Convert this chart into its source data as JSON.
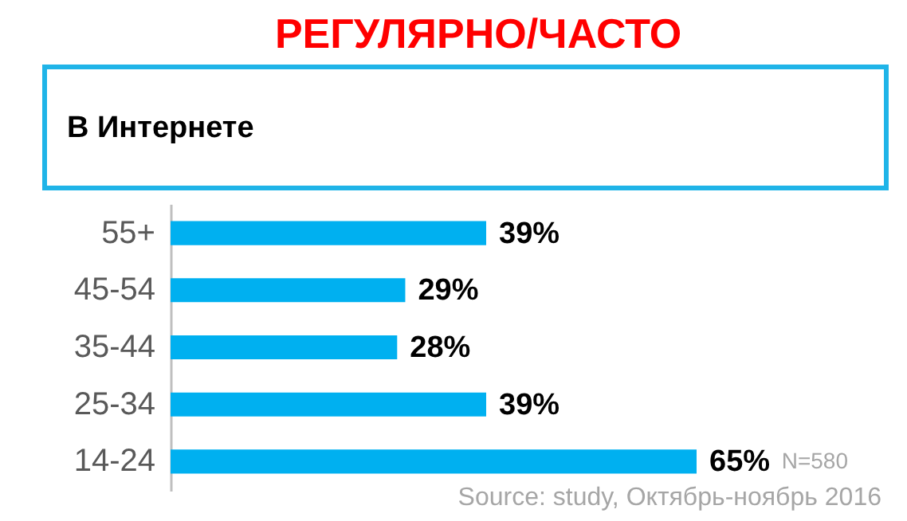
{
  "chart_data": {
    "type": "bar",
    "orientation": "horizontal",
    "title": "РЕГУЛЯРНО/ЧАСТО",
    "subtitle": "В Интернете",
    "categories": [
      "55+",
      "45-54",
      "35-44",
      "25-34",
      "14-24"
    ],
    "values": [
      39,
      29,
      28,
      39,
      65
    ],
    "color": "#00b0f0",
    "value_labels": [
      "39%",
      "29%",
      "28%",
      "39%",
      "65%"
    ],
    "tick_labels": "y",
    "grid": false,
    "annotations": [
      "N=580",
      "Source: study, Октябрь-ноябрь 2016"
    ]
  }
}
